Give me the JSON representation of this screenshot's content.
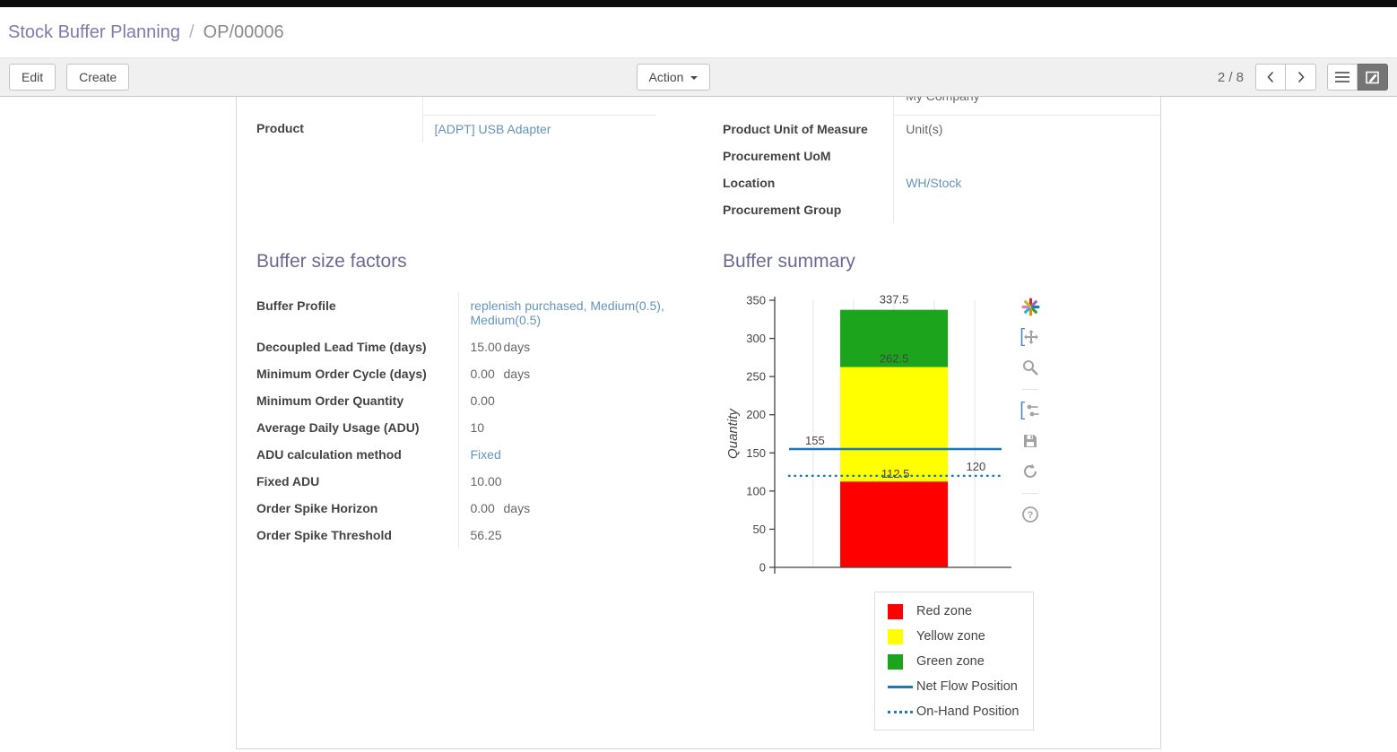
{
  "breadcrumb": {
    "primary": "Stock Buffer Planning",
    "separator": "/",
    "current": "OP/00006"
  },
  "toolbar": {
    "edit_label": "Edit",
    "create_label": "Create",
    "action_label": "Action",
    "pager": "2 / 8",
    "icons": [
      "chevron-left-icon",
      "chevron-right-icon",
      "list-view-icon",
      "form-view-icon",
      "caret-down-icon"
    ]
  },
  "form": {
    "clipped_top_value": "My Company",
    "product": {
      "label": "Product",
      "value": "[ADPT] USB Adapter"
    },
    "right_fields": [
      {
        "label": "Product Unit of Measure",
        "value": "Unit(s)"
      },
      {
        "label": "Procurement UoM",
        "value": ""
      },
      {
        "label": "Location",
        "value": "WH/Stock"
      },
      {
        "label": "Procurement Group",
        "value": ""
      }
    ]
  },
  "buffer_factors": {
    "title": "Buffer size factors",
    "fields": [
      {
        "label": "Buffer Profile",
        "value": "replenish purchased, Medium(0.5), Medium(0.5)"
      },
      {
        "label": "Decoupled Lead Time (days)",
        "value": "15.00",
        "unit": "days"
      },
      {
        "label": "Minimum Order Cycle (days)",
        "value": "0.00",
        "unit": "days"
      },
      {
        "label": "Minimum Order Quantity",
        "value": "0.00"
      },
      {
        "label": "Average Daily Usage (ADU)",
        "value": "10"
      },
      {
        "label": "ADU calculation method",
        "value": "Fixed"
      },
      {
        "label": "Fixed ADU",
        "value": "10.00"
      },
      {
        "label": "Order Spike Horizon",
        "value": "0.00",
        "unit": "days"
      },
      {
        "label": "Order Spike Threshold",
        "value": "56.25"
      }
    ]
  },
  "buffer_summary": {
    "title": "Buffer summary"
  },
  "chart_data": {
    "type": "bar",
    "title": "",
    "xlabel": "",
    "ylabel": "Quantity",
    "ylim": [
      0,
      350
    ],
    "yticks": [
      0,
      50,
      100,
      150,
      200,
      250,
      300,
      350
    ],
    "grid": "vertical",
    "legend_position": "bottom-right",
    "zones": [
      {
        "name": "Red zone",
        "from": 0,
        "to": 112.5,
        "color": "#ff0000"
      },
      {
        "name": "Yellow zone",
        "from": 112.5,
        "to": 262.5,
        "color": "#ffff00"
      },
      {
        "name": "Green zone",
        "from": 262.5,
        "to": 337.5,
        "color": "#1ca41c"
      }
    ],
    "lines": [
      {
        "name": "Net Flow Position",
        "value": 155,
        "style": "solid",
        "color": "#1f77b4"
      },
      {
        "name": "On-Hand Position",
        "value": 120,
        "style": "dotted",
        "color": "#1f77b4"
      }
    ],
    "annotations": [
      {
        "text": "337.5",
        "value": 337.5,
        "xf": 0.504,
        "dy": -7
      },
      {
        "text": "262.5",
        "value": 262.5,
        "xf": 0.504,
        "dy": -5
      },
      {
        "text": "155",
        "value": 155,
        "xf": 0.17,
        "dy": -5
      },
      {
        "text": "112.5",
        "value": 112.5,
        "xf": 0.51,
        "dy": -4
      },
      {
        "text": "120",
        "value": 120,
        "xf": 0.85,
        "dy": -6
      }
    ]
  },
  "modebar_icons": [
    "plotly-logo",
    "pan",
    "zoom",
    "hover-compare",
    "save",
    "reset-axes",
    "help"
  ],
  "colors": {
    "accent": "#7c7bad",
    "link": "#6494bc",
    "toolbar_active_button": "#757575",
    "section_title": "#6b6993"
  }
}
